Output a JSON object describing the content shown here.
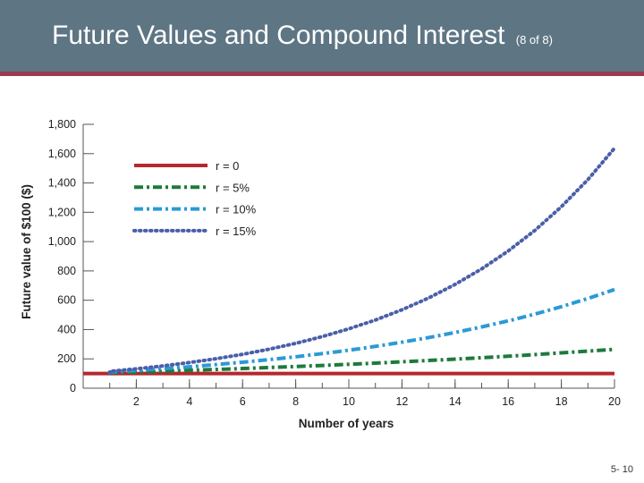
{
  "slide": {
    "title": "Future Values and Compound Interest",
    "title_suffix": "(8 of 8)",
    "page_number": "5- 10"
  },
  "colors": {
    "header_bg": "#5e7584",
    "header_rule": "#9b3a4e"
  },
  "chart_data": {
    "type": "line",
    "xlabel": "Number of years",
    "ylabel": "Future value of $100 ($)",
    "xlim": [
      0,
      20
    ],
    "ylim": [
      0,
      1800
    ],
    "xticks": [
      2,
      4,
      6,
      8,
      10,
      12,
      14,
      16,
      18,
      20
    ],
    "xtick_labels": [
      "2",
      "4",
      "6",
      "8",
      "10",
      "12",
      "14",
      "16",
      "18",
      "20"
    ],
    "yticks": [
      0,
      200,
      400,
      600,
      800,
      1000,
      1200,
      1400,
      1600,
      1800
    ],
    "ytick_labels": [
      "0",
      "200",
      "400",
      "600",
      "800",
      "1,000",
      "1,200",
      "1,400",
      "1,600",
      "1,800"
    ],
    "grid": false,
    "legend_position": "top-left",
    "series": [
      {
        "name": "r = 0",
        "color": "#b5282e",
        "style": "solid",
        "x": [
          0,
          20
        ],
        "y": [
          100,
          100
        ]
      },
      {
        "name": "r = 5%",
        "color": "#1e7a3c",
        "style": "dash-dot",
        "x": [
          1,
          2,
          3,
          4,
          5,
          6,
          7,
          8,
          9,
          10,
          11,
          12,
          13,
          14,
          15,
          16,
          17,
          18,
          19,
          20
        ],
        "y": [
          105,
          110,
          116,
          122,
          128,
          134,
          141,
          148,
          155,
          163,
          171,
          180,
          189,
          198,
          208,
          218,
          229,
          241,
          253,
          265
        ]
      },
      {
        "name": "r = 10%",
        "color": "#2b9ad6",
        "style": "dash-dot",
        "x": [
          1,
          2,
          3,
          4,
          5,
          6,
          7,
          8,
          9,
          10,
          11,
          12,
          13,
          14,
          15,
          16,
          17,
          18,
          19,
          20
        ],
        "y": [
          110,
          121,
          133,
          146,
          161,
          177,
          195,
          214,
          236,
          259,
          285,
          314,
          345,
          380,
          418,
          459,
          505,
          556,
          612,
          673
        ]
      },
      {
        "name": "r = 15%",
        "color": "#4a5fa8",
        "style": "dotted",
        "x": [
          1,
          2,
          3,
          4,
          5,
          6,
          7,
          8,
          9,
          10,
          11,
          12,
          13,
          14,
          15,
          16,
          17,
          18,
          19,
          20
        ],
        "y": [
          115,
          132,
          152,
          175,
          201,
          231,
          266,
          306,
          352,
          405,
          465,
          535,
          615,
          708,
          814,
          936,
          1076,
          1238,
          1423,
          1637
        ]
      }
    ]
  }
}
